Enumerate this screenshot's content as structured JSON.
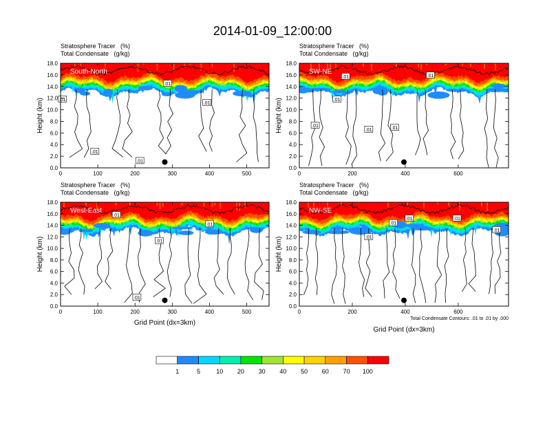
{
  "page_title": "2014-01-09_12:00:00",
  "colorbar": {
    "labels": [
      "1",
      "5",
      "10",
      "20",
      "30",
      "40",
      "50",
      "60",
      "70",
      "100"
    ],
    "colors": [
      "#ffffff",
      "#1e8cff",
      "#00d8ff",
      "#00f0b4",
      "#00e600",
      "#a0e632",
      "#ffff00",
      "#ffd200",
      "#ffa000",
      "#ff5000",
      "#ff0000"
    ]
  },
  "colors": {
    "tracer_top": "#ff0000",
    "contour_line": "#000000",
    "marker": "#000000"
  },
  "chart_data": [
    {
      "type": "contour",
      "subtitle_line1": "Stratosphere Tracer   (%)",
      "subtitle_line2": "Total Condensate   (g/kg)",
      "panel_label": "South-North",
      "ylabel": "Height (km)",
      "xlabel": "",
      "x_ticks": [
        "0",
        "100",
        "200",
        "300",
        "400",
        "500"
      ],
      "x_tick_values": [
        0,
        100,
        200,
        300,
        400,
        500
      ],
      "xlim": [
        0,
        560
      ],
      "y_ticks": [
        "0.0",
        "2.0",
        "4.0",
        "6.0",
        "8.0",
        "10.0",
        "12.0",
        "14.0",
        "16.0",
        "18.0"
      ],
      "ylim": [
        0,
        18
      ],
      "marker": {
        "x": 280,
        "y": 1.0
      },
      "contour_labels": [
        {
          "text": ".01",
          "x": 5,
          "y": 11.8
        },
        {
          "text": ".01",
          "x": 92,
          "y": 2.8
        },
        {
          "text": ".01",
          "x": 213,
          "y": 1.2
        },
        {
          "text": ".01",
          "x": 287,
          "y": 14.5
        },
        {
          "text": ".01",
          "x": 393,
          "y": 11.2
        }
      ],
      "footnote": ""
    },
    {
      "type": "contour",
      "subtitle_line1": "Stratosphere Tracer   (%)",
      "subtitle_line2": "Total Condensate   (g/kg)",
      "panel_label": "SW-NE",
      "ylabel": "Height (km)",
      "xlabel": "",
      "x_ticks": [
        "0",
        "200",
        "400",
        "600"
      ],
      "x_tick_values": [
        0,
        200,
        400,
        600
      ],
      "xlim": [
        0,
        790
      ],
      "y_ticks": [
        "0.0",
        "2.0",
        "4.0",
        "6.0",
        "8.0",
        "10.0",
        "12.0",
        "14.0",
        "16.0",
        "18.0"
      ],
      "ylim": [
        0,
        18
      ],
      "marker": {
        "x": 395,
        "y": 1.0
      },
      "contour_labels": [
        {
          "text": ".01",
          "x": 175,
          "y": 15.7
        },
        {
          "text": ".01",
          "x": 495,
          "y": 15.9
        },
        {
          "text": ".01",
          "x": 60,
          "y": 7.3
        },
        {
          "text": ".01",
          "x": 142,
          "y": 11.8
        },
        {
          "text": ".01",
          "x": 262,
          "y": 6.6
        },
        {
          "text": ".01",
          "x": 360,
          "y": 6.9
        }
      ],
      "footnote": ""
    },
    {
      "type": "contour",
      "subtitle_line1": "Stratosphere Tracer   (%)",
      "subtitle_line2": "Total Condensate   (g/kg)",
      "panel_label": "West-East",
      "ylabel": "Height (km)",
      "xlabel": "Grid Point (dx=3km)",
      "x_ticks": [
        "0",
        "100",
        "200",
        "300",
        "400",
        "500"
      ],
      "x_tick_values": [
        0,
        100,
        200,
        300,
        400,
        500
      ],
      "xlim": [
        0,
        560
      ],
      "y_ticks": [
        "0.0",
        "2.0",
        "4.0",
        "6.0",
        "8.0",
        "10.0",
        "12.0",
        "14.0",
        "16.0",
        "18.0"
      ],
      "ylim": [
        0,
        18
      ],
      "marker": {
        "x": 280,
        "y": 1.0
      },
      "contour_labels": [
        {
          "text": ".01",
          "x": 150,
          "y": 15.8
        },
        {
          "text": ".01",
          "x": 400,
          "y": 14.2
        },
        {
          "text": ".01",
          "x": 265,
          "y": 11.3
        },
        {
          "text": ".01",
          "x": 205,
          "y": 1.5
        }
      ],
      "footnote": ""
    },
    {
      "type": "contour",
      "subtitle_line1": "Stratosphere Tracer   (%)",
      "subtitle_line2": "Total Condensate   (g/kg)",
      "panel_label": "NW-SE",
      "ylabel": "Height (km)",
      "xlabel": "Grid Point (dx=3km)",
      "x_ticks": [
        "0",
        "200",
        "400",
        "600"
      ],
      "x_tick_values": [
        0,
        200,
        400,
        600
      ],
      "xlim": [
        0,
        790
      ],
      "y_ticks": [
        "0.0",
        "2.0",
        "4.0",
        "6.0",
        "8.0",
        "10.0",
        "12.0",
        "14.0",
        "16.0",
        "18.0"
      ],
      "ylim": [
        0,
        18
      ],
      "marker": {
        "x": 395,
        "y": 1.0
      },
      "contour_labels": [
        {
          "text": ".01",
          "x": 355,
          "y": 14.4
        },
        {
          "text": ".01",
          "x": 415,
          "y": 15.2
        },
        {
          "text": ".01",
          "x": 595,
          "y": 15.2
        },
        {
          "text": ".01",
          "x": 262,
          "y": 12.0
        },
        {
          "text": ".01",
          "x": 745,
          "y": 13.2
        }
      ],
      "footnote": "Total Condensate Contours: .01 to .01 by .000"
    }
  ]
}
